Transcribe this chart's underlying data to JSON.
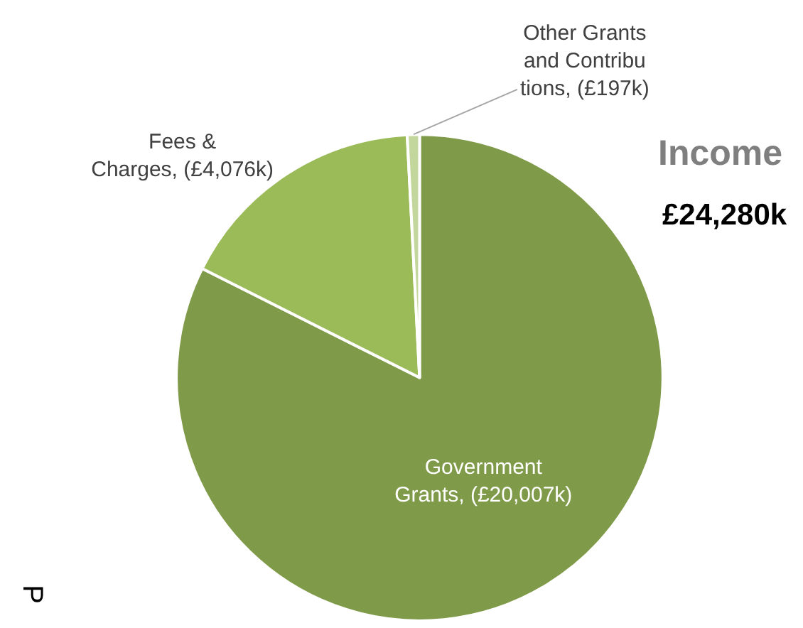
{
  "chart_data": {
    "type": "pie",
    "title": "Income",
    "subtitle": "£24,280k",
    "categories": [
      "Government Grants",
      "Fees & Charges",
      "Other Grants and Contributions"
    ],
    "values": [
      20007,
      4076,
      197
    ],
    "value_labels": [
      "(£20,007k)",
      "(£4,076k)",
      "(£197k)"
    ],
    "colors": [
      "#7f9a48",
      "#9bbb59",
      "#c3d69b"
    ],
    "annotations": [
      "P"
    ],
    "legend": false
  }
}
